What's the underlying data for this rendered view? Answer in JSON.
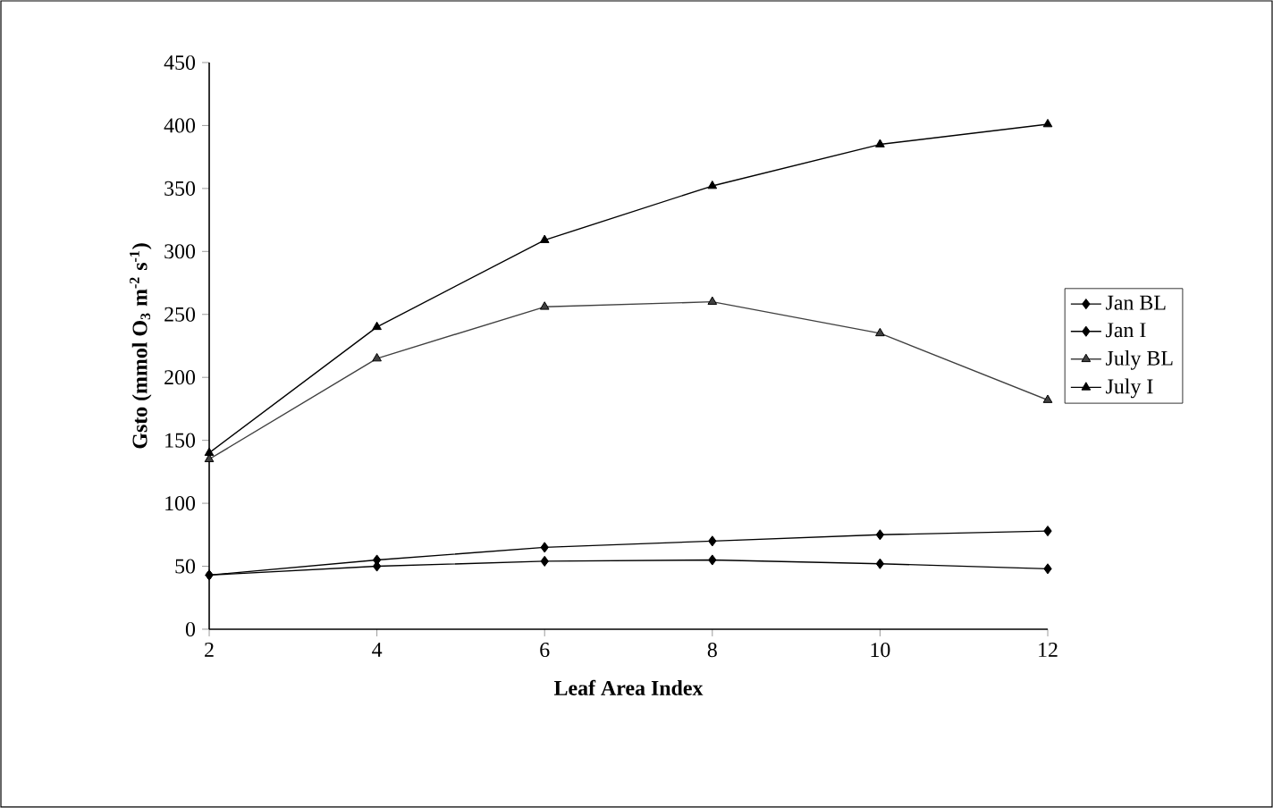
{
  "chart_data": {
    "type": "line",
    "xlabel": "Leaf Area Index",
    "ylabel": "Gsto (mmol O$_{3}$ m$^{-2}$ s$^{-1}$)",
    "x": [
      2,
      4,
      6,
      8,
      10,
      12
    ],
    "series": [
      {
        "name": "Jan BL",
        "color": "#000000",
        "marker": "diamond",
        "values": [
          43,
          50,
          54,
          55,
          52,
          48
        ]
      },
      {
        "name": "Jan I",
        "color": "#000000",
        "marker": "diamond",
        "values": [
          43,
          55,
          65,
          70,
          75,
          78
        ]
      },
      {
        "name": "July BL",
        "color": "#404040",
        "marker": "triangle",
        "values": [
          135,
          215,
          256,
          260,
          235,
          182
        ]
      },
      {
        "name": "July I",
        "color": "#000000",
        "marker": "triangle",
        "values": [
          140,
          240,
          309,
          352,
          385,
          401
        ]
      }
    ],
    "xlim": [
      2,
      12
    ],
    "xticks": [
      2,
      4,
      6,
      8,
      10,
      12
    ],
    "ylim": [
      0,
      450
    ],
    "yticks": [
      0,
      50,
      100,
      150,
      200,
      250,
      300,
      350,
      400,
      450
    ],
    "grid": false,
    "legend": "right",
    "line_style": "solid"
  }
}
